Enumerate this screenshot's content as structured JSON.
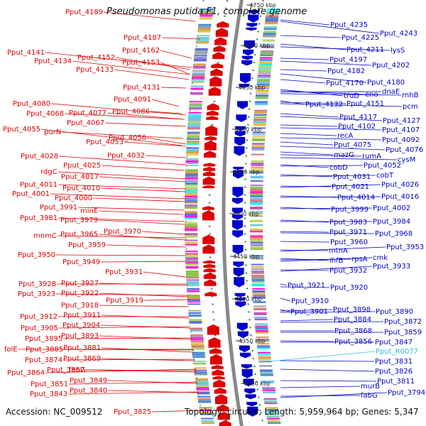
{
  "title": "Pseudomonas putida F1, complete genome",
  "accession": "Accession: NC_009512",
  "summary": "Topology: circular; Length: 5,959,964 bp; Genes: 5,347",
  "colors": {
    "reverse_strand": "#dd0000",
    "forward_strand": "#0000cc",
    "rna": "#33bbdd",
    "backbone": "#888888"
  },
  "ticks": [
    "4750 kbp",
    "4700 kbp",
    "4650 kbp",
    "4600 kbp",
    "4550 kbp",
    "4500 kbp",
    "4450 kbp",
    "4400 kbp",
    "4350 kbp",
    "4300 kbp"
  ],
  "left_labels": [
    "Pput_4189",
    "Pput_4187",
    "Pput_4141",
    "Pput_4162",
    "Pput_4152",
    "Pput_4134",
    "Pput_4153",
    "Pput_4133",
    "Pput_4131",
    "Pput_4091",
    "Pput_4080",
    "Pput_4086",
    "Pput_4068",
    "Pput_4077",
    "Pput_4067",
    "Pput_4055",
    "purN",
    "Pput_4056",
    "Pput_4053",
    "Pput_4032",
    "Pput_4028",
    "Pput_4025",
    "rdgC",
    "Pput_4017",
    "Pput_4011",
    "Pput_4010",
    "Pput_4001",
    "Pput_4000",
    "Pput_3991",
    "minE",
    "Pput_3981",
    "Pput_3979",
    "Pput_3970",
    "mnmC",
    "Pput_3965",
    "Pput_3959",
    "Pput_3950",
    "Pput_3949",
    "Pput_3931",
    "Pput_3928",
    "Pput_3927",
    "Pput_3923",
    "Pput_3922",
    "Pput_3919",
    "Pput_3918",
    "Pput_3912",
    "Pput_3911",
    "Pput_3905",
    "Pput_3904",
    "Pput_3895",
    "Pput_3893",
    "folE",
    "Pput_3885",
    "Pput_3881",
    "Pput_3874",
    "Pput_3869",
    "Pput_3864",
    "Pput_3862",
    "fabG",
    "Pput_3851",
    "Pput_3849",
    "Pput_3843",
    "Pput_3840",
    "Pput_3825"
  ],
  "right_labels": [
    "Pput_4235",
    "Pput_4243",
    "Pput_4225",
    "Pput_4211",
    "lysS",
    "Pput_4197",
    "Pput_4202",
    "Pput_4182",
    "Pput_4180",
    "Pput_4170",
    "truD",
    "eno",
    "dnaE",
    "rnhB",
    "Pput_4132",
    "Pput_4151",
    "pcm",
    "Pput_4117",
    "Pput_4127",
    "Pput_4102",
    "Pput_4107",
    "recA",
    "Pput_4092",
    "Pput_4075",
    "Pput_4076",
    "mazG",
    "rumA",
    "cysM",
    "cobD",
    "Pput_4052",
    "Pput_4031",
    "cobT",
    "Pput_4021",
    "Pput_4026",
    "Pput_4014",
    "Pput_4016",
    "Pput_3999",
    "Pput_4002",
    "Pput_3983",
    "Pput_3984",
    "Pput_3971",
    "Pput_3968",
    "Pput_3960",
    "mtnA",
    "Pput_3953",
    "ihfB",
    "rpsA",
    "cmk",
    "Pput_3932",
    "Pput_3933",
    "Pput_3921",
    "Pput_3920",
    "Pput_3910",
    "Pput_3901",
    "Pput_3898",
    "Pput_3890",
    "Pput_3884",
    "Pput_3872",
    "Pput_3868",
    "Pput_3859",
    "Pput_3856",
    "Pput_3847",
    "Pput_R0077",
    "Pput_3831",
    "Pput_3826",
    "Pput_3811",
    "murB",
    "fabG",
    "Pput_3794"
  ]
}
